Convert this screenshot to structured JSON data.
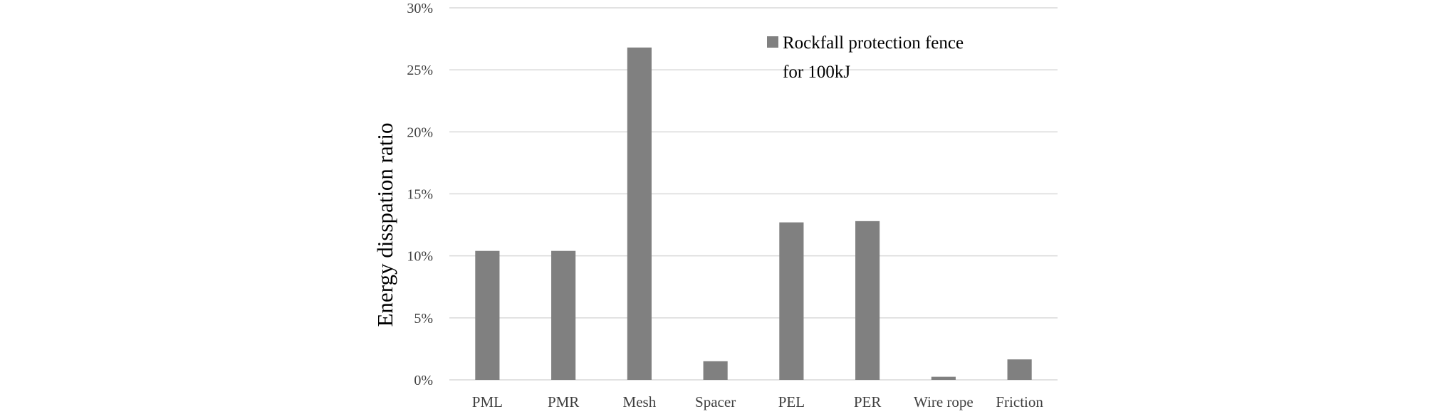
{
  "chart_data": {
    "type": "bar",
    "title": "",
    "xlabel": "",
    "ylabel": "Energy disspation ratio",
    "ylim": [
      0,
      30
    ],
    "yticks": [
      "0%",
      "5%",
      "10%",
      "15%",
      "20%",
      "25%",
      "30%"
    ],
    "ytick_values": [
      0,
      5,
      10,
      15,
      20,
      25,
      30
    ],
    "grid": true,
    "legend_position": "top-right",
    "categories": [
      "PML",
      "PMR",
      "Mesh",
      "Spacer",
      "PEL",
      "PER",
      "Wire rope",
      "Friction"
    ],
    "series": [
      {
        "name": "Rockfall protection fence for 100kJ",
        "name_lines": [
          "Rockfall protection fence",
          "for 100kJ"
        ],
        "color": "#808080",
        "values": [
          10.4,
          10.4,
          26.8,
          1.5,
          12.7,
          12.8,
          0.25,
          1.65
        ]
      }
    ],
    "gridline_color": "#d9d9d9"
  }
}
